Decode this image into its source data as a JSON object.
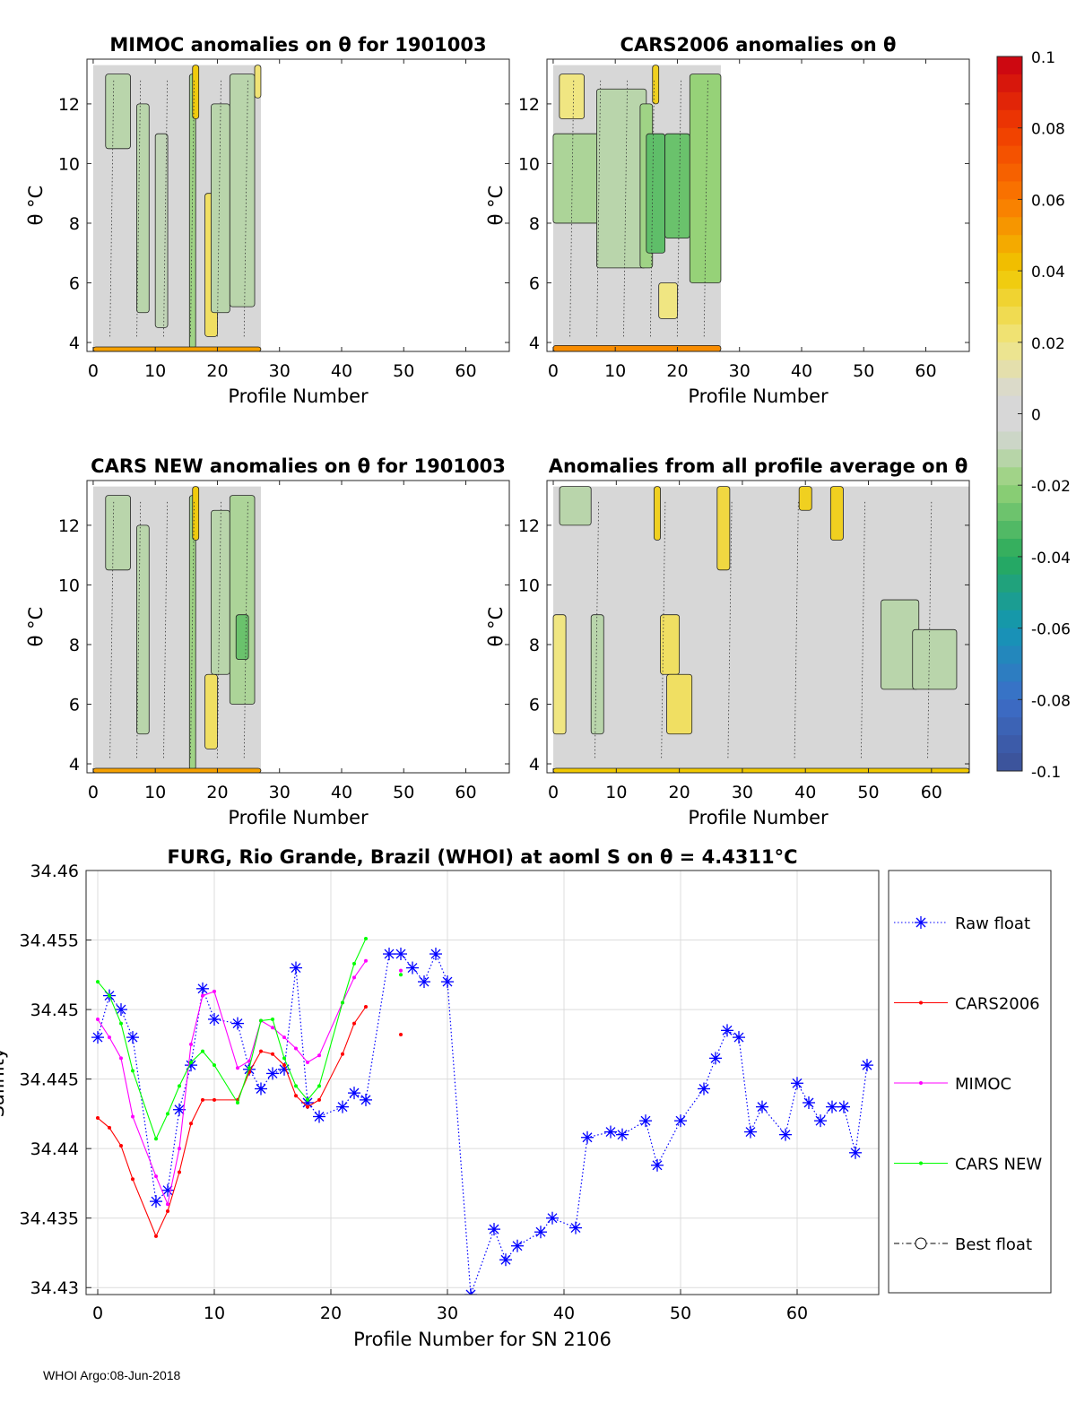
{
  "footer": "WHOI Argo:08-Jun-2018",
  "colorbar": {
    "ticks": [
      0.1,
      0.08,
      0.06,
      0.04,
      0.02,
      0,
      -0.02,
      -0.04,
      -0.06,
      -0.08,
      -0.1
    ],
    "tick_labels": [
      "0.1",
      "0.08",
      "0.06",
      "0.04",
      "0.02",
      "0",
      "-0.02",
      "-0.04",
      "-0.06",
      "-0.08",
      "-0.1"
    ],
    "range": [
      -0.1,
      0.1
    ]
  },
  "chart_data": [
    {
      "type": "heatmap",
      "title": "MIMOC anomalies on θ  for 1901003",
      "xlabel": "Profile Number",
      "ylabel": "θ °C",
      "xlim": [
        -1,
        67
      ],
      "ylim": [
        3.7,
        13.5
      ],
      "xticks": [
        0,
        10,
        20,
        30,
        40,
        50,
        60
      ],
      "yticks": [
        4,
        6,
        8,
        10,
        12
      ],
      "data_extent_profiles": [
        0,
        27
      ],
      "bands": [
        {
          "x0": 2,
          "x1": 6,
          "y0": 10.5,
          "y1": 13,
          "v": -0.012
        },
        {
          "x0": 7,
          "x1": 9,
          "y0": 5,
          "y1": 12,
          "v": -0.012
        },
        {
          "x0": 10,
          "x1": 12,
          "y0": 4.5,
          "y1": 11,
          "v": -0.01
        },
        {
          "x0": 15.5,
          "x1": 16.5,
          "y0": 3.8,
          "y1": 13,
          "v": -0.018
        },
        {
          "x0": 16,
          "x1": 17,
          "y0": 11.5,
          "y1": 13.3,
          "v": 0.038
        },
        {
          "x0": 18,
          "x1": 20,
          "y0": 4.2,
          "y1": 9,
          "v": 0.025
        },
        {
          "x0": 19,
          "x1": 22,
          "y0": 5,
          "y1": 12,
          "v": -0.012
        },
        {
          "x0": 22,
          "x1": 26,
          "y0": 5.2,
          "y1": 13,
          "v": -0.012
        },
        {
          "x0": 26,
          "x1": 27,
          "y0": 12.2,
          "y1": 13.3,
          "v": 0.022
        },
        {
          "x0": 0,
          "x1": 27,
          "y0": 3.7,
          "y1": 3.85,
          "v": 0.05
        }
      ]
    },
    {
      "type": "heatmap",
      "title": "CARS2006 anomalies on θ",
      "xlabel": "Profile Number",
      "ylabel": "θ °C",
      "xlim": [
        -1,
        67
      ],
      "ylim": [
        3.7,
        13.5
      ],
      "xticks": [
        0,
        10,
        20,
        30,
        40,
        50,
        60
      ],
      "yticks": [
        4,
        6,
        8,
        10,
        12
      ],
      "data_extent_profiles": [
        0,
        27
      ],
      "bands": [
        {
          "x0": 0,
          "x1": 8,
          "y0": 8,
          "y1": 11,
          "v": -0.015
        },
        {
          "x0": 1,
          "x1": 5,
          "y0": 11.5,
          "y1": 13,
          "v": 0.02
        },
        {
          "x0": 7,
          "x1": 15,
          "y0": 6.5,
          "y1": 12.5,
          "v": -0.012
        },
        {
          "x0": 14,
          "x1": 16,
          "y0": 6.5,
          "y1": 12,
          "v": -0.018
        },
        {
          "x0": 15,
          "x1": 18,
          "y0": 7,
          "y1": 11,
          "v": -0.03
        },
        {
          "x0": 18,
          "x1": 22,
          "y0": 7.5,
          "y1": 11,
          "v": -0.028
        },
        {
          "x0": 22,
          "x1": 27,
          "y0": 6,
          "y1": 13,
          "v": -0.02
        },
        {
          "x0": 16,
          "x1": 17,
          "y0": 12,
          "y1": 13.3,
          "v": 0.035
        },
        {
          "x0": 17,
          "x1": 20,
          "y0": 4.8,
          "y1": 6,
          "v": 0.02
        },
        {
          "x0": 0,
          "x1": 27,
          "y0": 3.7,
          "y1": 3.9,
          "v": 0.055
        }
      ]
    },
    {
      "type": "heatmap",
      "title": "CARS NEW anomalies on θ for 1901003",
      "xlabel": "Profile Number",
      "ylabel": "θ °C",
      "xlim": [
        -1,
        67
      ],
      "ylim": [
        3.7,
        13.5
      ],
      "xticks": [
        0,
        10,
        20,
        30,
        40,
        50,
        60
      ],
      "yticks": [
        4,
        6,
        8,
        10,
        12
      ],
      "data_extent_profiles": [
        0,
        27
      ],
      "bands": [
        {
          "x0": 2,
          "x1": 6,
          "y0": 10.5,
          "y1": 13,
          "v": -0.012
        },
        {
          "x0": 7,
          "x1": 9,
          "y0": 5,
          "y1": 12,
          "v": -0.012
        },
        {
          "x0": 15.5,
          "x1": 16.5,
          "y0": 3.8,
          "y1": 13,
          "v": -0.018
        },
        {
          "x0": 16,
          "x1": 17,
          "y0": 11.5,
          "y1": 13.3,
          "v": 0.038
        },
        {
          "x0": 18,
          "x1": 20,
          "y0": 4.5,
          "y1": 7,
          "v": 0.025
        },
        {
          "x0": 19,
          "x1": 22,
          "y0": 7,
          "y1": 12.5,
          "v": -0.012
        },
        {
          "x0": 22,
          "x1": 26,
          "y0": 6,
          "y1": 13,
          "v": -0.015
        },
        {
          "x0": 23,
          "x1": 25,
          "y0": 7.5,
          "y1": 9,
          "v": -0.028
        },
        {
          "x0": 0,
          "x1": 27,
          "y0": 3.7,
          "y1": 3.85,
          "v": 0.05
        }
      ]
    },
    {
      "type": "heatmap",
      "title": "Anomalies from all profile average on θ",
      "xlabel": "Profile Number",
      "ylabel": "θ °C",
      "xlim": [
        -1,
        66
      ],
      "ylim": [
        3.7,
        13.5
      ],
      "xticks": [
        0,
        10,
        20,
        30,
        40,
        50,
        60
      ],
      "yticks": [
        4,
        6,
        8,
        10,
        12
      ],
      "data_extent_profiles": [
        0,
        66
      ],
      "bands": [
        {
          "x0": 0,
          "x1": 2,
          "y0": 5,
          "y1": 9,
          "v": 0.02
        },
        {
          "x0": 1,
          "x1": 6,
          "y0": 12,
          "y1": 13.3,
          "v": -0.012
        },
        {
          "x0": 6,
          "x1": 8,
          "y0": 5,
          "y1": 9,
          "v": -0.012
        },
        {
          "x0": 16,
          "x1": 17,
          "y0": 11.5,
          "y1": 13.3,
          "v": 0.035
        },
        {
          "x0": 17,
          "x1": 20,
          "y0": 7,
          "y1": 9,
          "v": 0.025
        },
        {
          "x0": 18,
          "x1": 22,
          "y0": 5,
          "y1": 7,
          "v": 0.025
        },
        {
          "x0": 26,
          "x1": 28,
          "y0": 10.5,
          "y1": 13.3,
          "v": 0.03
        },
        {
          "x0": 39,
          "x1": 41,
          "y0": 12.5,
          "y1": 13.3,
          "v": 0.035
        },
        {
          "x0": 44,
          "x1": 46,
          "y0": 11.5,
          "y1": 13.3,
          "v": 0.035
        },
        {
          "x0": 52,
          "x1": 58,
          "y0": 6.5,
          "y1": 9.5,
          "v": -0.012
        },
        {
          "x0": 57,
          "x1": 64,
          "y0": 6.5,
          "y1": 8.5,
          "v": -0.012
        },
        {
          "x0": 0,
          "x1": 66,
          "y0": 3.7,
          "y1": 3.85,
          "v": 0.04
        }
      ]
    },
    {
      "type": "line",
      "title": "FURG, Rio Grande, Brazil (WHOI) at aoml S on θ = 4.4311°C",
      "xlabel": "Profile Number for SN 2106",
      "ylabel": "Salinity",
      "xlim": [
        -1,
        67
      ],
      "ylim": [
        34.4295,
        34.46
      ],
      "xticks": [
        0,
        10,
        20,
        30,
        40,
        50,
        60
      ],
      "xtick_labels": [
        "0",
        "10",
        "20",
        "30",
        "40",
        "50",
        "60"
      ],
      "yticks": [
        34.43,
        34.435,
        34.44,
        34.445,
        34.45,
        34.455,
        34.46
      ],
      "ytick_labels": [
        "34.43",
        "34.435",
        "34.44",
        "34.445",
        "34.45",
        "34.455",
        "34.46"
      ],
      "grid": true,
      "legend_position": "outside-right",
      "series": [
        {
          "name": "Raw float",
          "color": "#0000ff",
          "style": "dotted",
          "marker": "star",
          "x": [
            0,
            1,
            2,
            3,
            5,
            6,
            7,
            8,
            9,
            10,
            12,
            13,
            14,
            15,
            16,
            17,
            18,
            19,
            21,
            22,
            23,
            25,
            26,
            27,
            28,
            29,
            30,
            32,
            34,
            35,
            36,
            38,
            39,
            41,
            42,
            44,
            45,
            47,
            48,
            50,
            52,
            53,
            54,
            55,
            56,
            57,
            59,
            60,
            61,
            62,
            63,
            64,
            65,
            66
          ],
          "y": [
            34.448,
            34.451,
            34.45,
            34.448,
            34.4362,
            34.437,
            34.4428,
            34.446,
            34.4515,
            34.4493,
            34.449,
            34.4457,
            34.4443,
            34.4454,
            34.4457,
            34.453,
            34.4433,
            34.4423,
            34.443,
            34.444,
            34.4435,
            34.454,
            34.454,
            34.453,
            34.452,
            34.454,
            34.452,
            34.4295,
            34.4342,
            34.432,
            34.433,
            34.434,
            34.435,
            34.4343,
            34.4408,
            34.4412,
            34.441,
            34.442,
            34.4388,
            34.442,
            34.4443,
            34.4465,
            34.4485,
            34.448,
            34.4412,
            34.443,
            34.441,
            34.4447,
            34.4433,
            34.442,
            34.443,
            34.443,
            34.4397,
            34.446
          ]
        },
        {
          "name": "CARS2006",
          "color": "#ff0000",
          "style": "solid",
          "marker": "dot",
          "x": [
            0,
            1,
            2,
            3,
            5,
            6,
            7,
            8,
            9,
            10,
            12,
            13,
            14,
            15,
            16,
            17,
            18,
            19,
            21,
            22,
            23
          ],
          "y": [
            34.4422,
            34.4415,
            34.4402,
            34.4378,
            34.4337,
            34.4355,
            34.4383,
            34.4418,
            34.4435,
            34.4435,
            34.4435,
            34.4455,
            34.447,
            34.4468,
            34.446,
            34.4438,
            34.443,
            34.4435,
            34.4468,
            34.449,
            34.4502
          ],
          "extra_points": [
            {
              "x": 26,
              "y": 34.4482
            }
          ]
        },
        {
          "name": "MIMOC",
          "color": "#ff00ff",
          "style": "solid",
          "marker": "dot",
          "x": [
            0,
            1,
            2,
            3,
            5,
            6,
            7,
            8,
            9,
            10,
            12,
            13,
            14,
            15,
            16,
            17,
            18,
            19,
            21,
            22,
            23
          ],
          "y": [
            34.4493,
            34.448,
            34.4465,
            34.4423,
            34.438,
            34.436,
            34.44,
            34.4475,
            34.451,
            34.4513,
            34.4458,
            34.4463,
            34.4492,
            34.4487,
            34.448,
            34.4472,
            34.4462,
            34.4467,
            34.4505,
            34.4523,
            34.4535
          ],
          "extra_points": [
            {
              "x": 26,
              "y": 34.4528
            }
          ]
        },
        {
          "name": "CARS NEW",
          "color": "#00ff00",
          "style": "solid",
          "marker": "dot",
          "x": [
            0,
            1,
            2,
            3,
            5,
            6,
            7,
            8,
            9,
            10,
            12,
            13,
            14,
            15,
            16,
            17,
            18,
            19,
            21,
            22,
            23
          ],
          "y": [
            34.452,
            34.451,
            34.449,
            34.4456,
            34.4407,
            34.4425,
            34.4445,
            34.4462,
            34.447,
            34.446,
            34.4433,
            34.4458,
            34.4492,
            34.4493,
            34.4465,
            34.4445,
            34.4435,
            34.4445,
            34.4505,
            34.4533,
            34.4551
          ],
          "extra_points": [
            {
              "x": 26,
              "y": 34.4525
            }
          ]
        },
        {
          "name": "Best float",
          "color": "#000000",
          "style": "dashdot",
          "marker": "circle",
          "x": [],
          "y": []
        }
      ]
    }
  ]
}
